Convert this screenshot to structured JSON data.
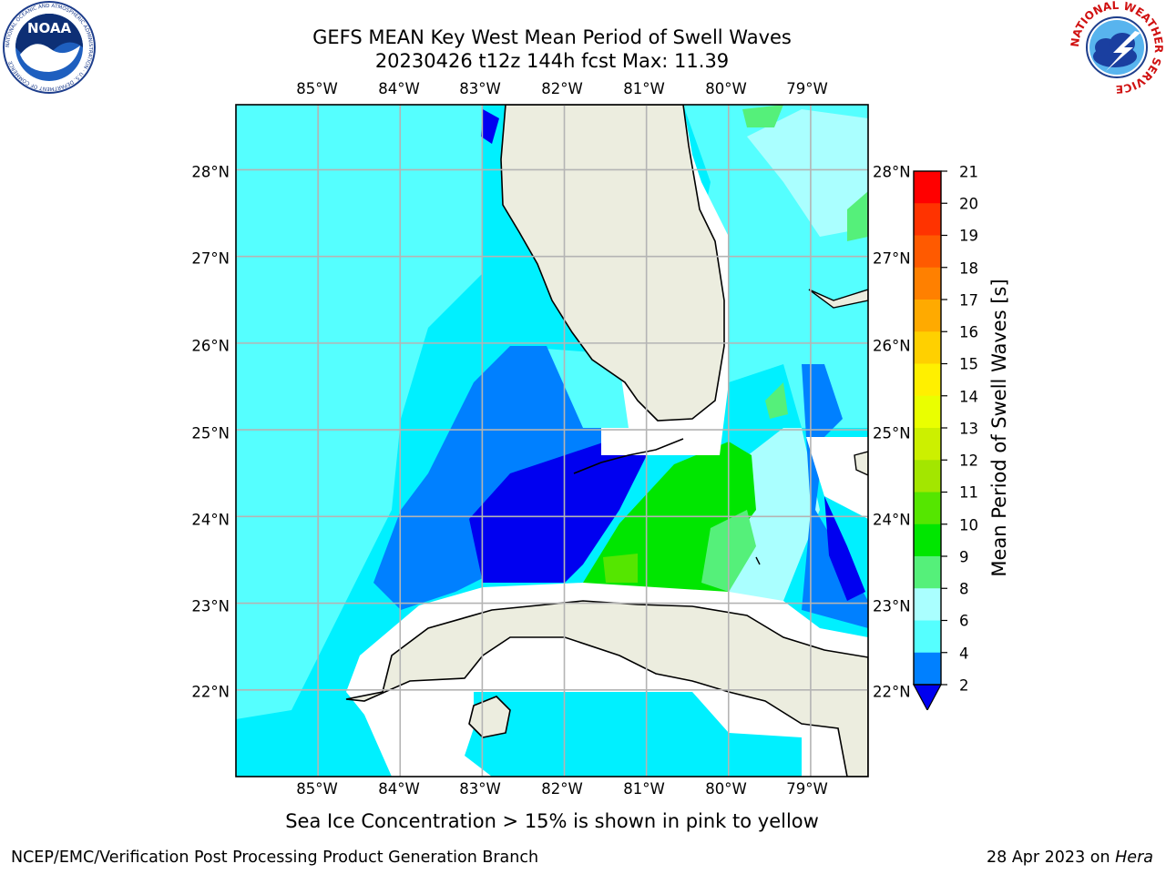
{
  "title": {
    "line1": "GEFS MEAN Key West Mean Period of Swell Waves",
    "line2": "20230426 t12z 144h fcst   Max: 11.39"
  },
  "map": {
    "lon_labels": [
      "85°W",
      "84°W",
      "83°W",
      "82°W",
      "81°W",
      "80°W",
      "79°W"
    ],
    "lat_labels": [
      "28°N",
      "27°N",
      "26°N",
      "25°N",
      "24°N",
      "23°N",
      "22°N"
    ],
    "extent": {
      "lon_min": -86.0,
      "lon_max": -78.3,
      "lat_min": 21.0,
      "lat_max": 28.75
    },
    "land_color": "#eceddf",
    "no_data_color": "#ffffff"
  },
  "colorbar": {
    "label": "Mean Period of Swell Waves [s]",
    "ticks": [
      "21",
      "20",
      "19",
      "18",
      "17",
      "16",
      "15",
      "14",
      "13",
      "12",
      "11",
      "10",
      "9",
      "8",
      "6",
      "4",
      "2"
    ],
    "colors": [
      "#ff0000",
      "#ff3300",
      "#ff5a00",
      "#ff8000",
      "#ffaa00",
      "#ffd000",
      "#fff000",
      "#eaff00",
      "#ccf000",
      "#a3e600",
      "#55e600",
      "#00e600",
      "#55f07a",
      "#aaffff",
      "#55ffff",
      "#00f0ff",
      "#0080ff"
    ],
    "under_color": "#0000f0"
  },
  "note": "Sea Ice Concentration > 15% is shown in pink to yellow",
  "footer": {
    "left": "NCEP/EMC/Verification Post Processing Product Generation Branch",
    "date": "28 Apr 2023 on ",
    "host": "Hera"
  },
  "logos": {
    "noaa_text": "NOAA",
    "noaa_ring_text": "NATIONAL OCEANIC AND ATMOSPHERIC ADMINISTRATION · U.S. DEPARTMENT OF COMMERCE",
    "nws_ring_text": "NATIONAL WEATHER SERVICE"
  }
}
